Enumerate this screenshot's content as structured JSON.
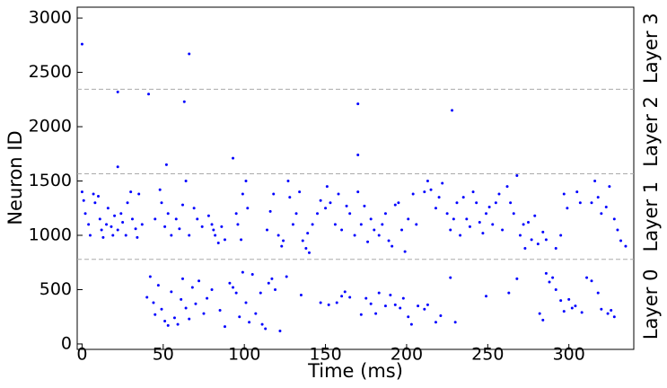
{
  "chart_data": {
    "type": "scatter",
    "x_label": "Time (ms)",
    "y_label": "Neuron ID",
    "color": "#0000ff",
    "xlim": [
      -3,
      340
    ],
    "ylim": [
      -50,
      3100
    ],
    "xticks": [
      0,
      50,
      100,
      150,
      200,
      250,
      300
    ],
    "yticks": [
      0,
      500,
      1000,
      1500,
      2000,
      2500,
      3000
    ],
    "layer_boundaries": [
      779,
      1566,
      2345
    ],
    "layer_labels": [
      "Layer 0",
      "Layer 1",
      "Layer 2",
      "Layer 3"
    ],
    "x": [
      0,
      66,
      22,
      41,
      63,
      170,
      228,
      22,
      52,
      93,
      170,
      0,
      1,
      2,
      4,
      5,
      7,
      8,
      10,
      11,
      12,
      13,
      15,
      16,
      18,
      19,
      20,
      22,
      24,
      25,
      27,
      28,
      30,
      31,
      33,
      34,
      35,
      37,
      45,
      48,
      49,
      51,
      53,
      55,
      58,
      60,
      62,
      64,
      66,
      69,
      71,
      74,
      78,
      80,
      81,
      82,
      84,
      86,
      88,
      95,
      96,
      98,
      99,
      101,
      102,
      114,
      116,
      118,
      121,
      123,
      124,
      127,
      128,
      130,
      132,
      134,
      136,
      138,
      139,
      140,
      142,
      145,
      147,
      150,
      151,
      153,
      156,
      158,
      160,
      163,
      165,
      168,
      170,
      172,
      174,
      176,
      178,
      180,
      183,
      185,
      187,
      189,
      191,
      193,
      195,
      197,
      199,
      201,
      204,
      206,
      211,
      213,
      215,
      218,
      220,
      222,
      225,
      227,
      229,
      231,
      233,
      235,
      237,
      239,
      241,
      243,
      245,
      247,
      249,
      251,
      253,
      255,
      257,
      259,
      262,
      264,
      266,
      268,
      270,
      272,
      273,
      275,
      277,
      279,
      281,
      284,
      286,
      292,
      295,
      297,
      299,
      305,
      307,
      314,
      316,
      318,
      320,
      323,
      325,
      328,
      330,
      332,
      335,
      40,
      42,
      44,
      45,
      47,
      49,
      51,
      53,
      55,
      57,
      59,
      61,
      62,
      64,
      66,
      68,
      70,
      72,
      75,
      77,
      80,
      85,
      88,
      91,
      93,
      95,
      97,
      99,
      101,
      103,
      105,
      107,
      110,
      111,
      113,
      115,
      117,
      119,
      122,
      126,
      135,
      147,
      152,
      157,
      160,
      162,
      165,
      172,
      175,
      178,
      181,
      183,
      187,
      190,
      193,
      196,
      198,
      201,
      203,
      207,
      211,
      213,
      218,
      221,
      227,
      230,
      249,
      263,
      268,
      282,
      284,
      286,
      288,
      290,
      292,
      295,
      297,
      300,
      302,
      304,
      308,
      311,
      314,
      318,
      320,
      324,
      326,
      328
    ],
    "values": [
      2760,
      2670,
      2320,
      2300,
      2230,
      2210,
      2150,
      1630,
      1650,
      1710,
      1740,
      1400,
      1320,
      1200,
      1100,
      1000,
      1380,
      1300,
      1360,
      1150,
      1050,
      980,
      1100,
      1250,
      1080,
      1000,
      1180,
      1050,
      1200,
      1120,
      1000,
      1300,
      1400,
      1150,
      1060,
      980,
      1380,
      1100,
      1150,
      1420,
      1300,
      1080,
      1200,
      1000,
      1150,
      1060,
      1280,
      1500,
      1000,
      1250,
      1150,
      1080,
      1180,
      1100,
      1050,
      1000,
      930,
      1080,
      960,
      1200,
      1100,
      960,
      1380,
      1500,
      1250,
      1050,
      1220,
      1380,
      1000,
      900,
      950,
      1500,
      1350,
      1100,
      1200,
      1400,
      950,
      880,
      1020,
      840,
      1100,
      1200,
      1320,
      1250,
      1450,
      1300,
      1100,
      1380,
      1050,
      1270,
      1200,
      1000,
      1400,
      1100,
      1270,
      940,
      1150,
      1050,
      1000,
      1100,
      1200,
      950,
      900,
      1280,
      1300,
      1050,
      850,
      1150,
      1380,
      1100,
      1400,
      1500,
      1420,
      1250,
      1350,
      1480,
      1200,
      1050,
      1150,
      1300,
      1000,
      1350,
      1150,
      1080,
      1400,
      1300,
      1120,
      1020,
      1200,
      1260,
      1100,
      1300,
      1380,
      1050,
      1450,
      1300,
      1200,
      1550,
      1000,
      1100,
      880,
      1120,
      960,
      1180,
      920,
      1030,
      960,
      880,
      1000,
      1380,
      1250,
      1400,
      1300,
      1300,
      1500,
      1350,
      1200,
      1260,
      1450,
      1150,
      1050,
      950,
      900,
      430,
      620,
      380,
      270,
      540,
      320,
      210,
      170,
      480,
      240,
      180,
      410,
      600,
      330,
      230,
      520,
      370,
      580,
      280,
      420,
      500,
      310,
      160,
      560,
      520,
      470,
      250,
      660,
      380,
      200,
      640,
      280,
      470,
      180,
      140,
      560,
      600,
      500,
      120,
      620,
      450,
      380,
      360,
      380,
      440,
      480,
      430,
      270,
      420,
      370,
      280,
      470,
      350,
      450,
      360,
      330,
      420,
      250,
      180,
      350,
      320,
      360,
      200,
      260,
      610,
      200,
      440,
      470,
      600,
      280,
      220,
      650,
      570,
      610,
      500,
      400,
      300,
      410,
      330,
      350,
      290,
      610,
      580,
      470,
      320,
      280,
      310,
      250
    ]
  }
}
